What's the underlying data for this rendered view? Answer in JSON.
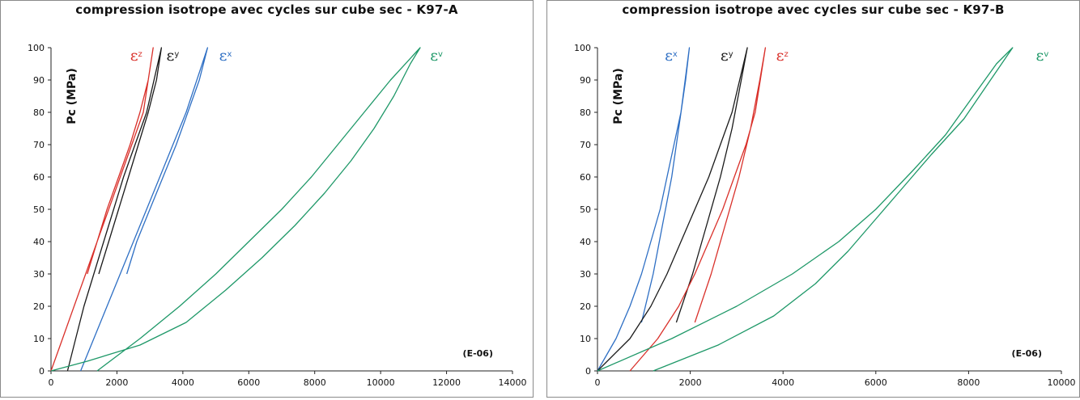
{
  "chart_data": [
    {
      "type": "line",
      "title": "compression isotrope avec cycles sur cube sec - K97-A",
      "ylabel": "Pc (MPa)",
      "x_unit_note": "(E-06)",
      "xlim": [
        0,
        14000
      ],
      "ylim": [
        0,
        100
      ],
      "x_ticks": [
        0,
        2000,
        4000,
        6000,
        8000,
        10000,
        12000,
        14000
      ],
      "y_ticks": [
        0,
        10,
        20,
        30,
        40,
        50,
        60,
        70,
        80,
        90,
        100
      ],
      "grid": false,
      "series": [
        {
          "label_main": "ε",
          "label_sub": "z",
          "color": "#d9302a",
          "x": [
            0,
            350,
            700,
            1050,
            1400,
            1750,
            2100,
            2450,
            2800,
            3100,
            2950,
            2700,
            2400,
            2050,
            1700,
            1400,
            1100
          ],
          "y": [
            0,
            10,
            20,
            30,
            40,
            50,
            60,
            70,
            80,
            100,
            90,
            80,
            70,
            60,
            50,
            40,
            30
          ]
        },
        {
          "label_main": "ε",
          "label_sub": "y",
          "color": "#1a1a1a",
          "x": [
            500,
            750,
            1000,
            1300,
            1600,
            1900,
            2200,
            2550,
            2900,
            3350,
            3200,
            2950,
            2650,
            2350,
            2050,
            1750,
            1450
          ],
          "y": [
            0,
            10,
            20,
            30,
            40,
            50,
            60,
            70,
            80,
            100,
            90,
            80,
            70,
            60,
            50,
            40,
            30
          ]
        },
        {
          "label_main": "ε",
          "label_sub": "x",
          "color": "#2e6fc4",
          "x": [
            900,
            1300,
            1700,
            2100,
            2500,
            2900,
            3300,
            3700,
            4100,
            4750,
            4500,
            4150,
            3800,
            3400,
            3000,
            2600,
            2300
          ],
          "y": [
            0,
            10,
            20,
            30,
            40,
            50,
            60,
            70,
            80,
            100,
            90,
            80,
            70,
            60,
            50,
            40,
            30
          ]
        },
        {
          "label_main": "ε",
          "label_sub": "v",
          "color": "#1e9868",
          "x": [
            1400,
            2700,
            3900,
            5000,
            6000,
            7000,
            7900,
            8700,
            9500,
            10300,
            11200,
            10900,
            10400,
            9800,
            9100,
            8300,
            7400,
            6400,
            5300,
            4100,
            2700,
            1100,
            0
          ],
          "y": [
            0,
            10,
            20,
            30,
            40,
            50,
            60,
            70,
            80,
            90,
            100,
            95,
            85,
            75,
            65,
            55,
            45,
            35,
            25,
            15,
            8,
            3,
            0
          ]
        }
      ],
      "label_positions_x": [
        2400,
        3500,
        5100,
        11500
      ],
      "label_y": 96
    },
    {
      "type": "line",
      "title": "compression isotrope avec cycles sur cube sec - K97-B",
      "ylabel": "Pc (MPa)",
      "x_unit_note": "(E-06)",
      "xlim": [
        0,
        10000
      ],
      "ylim": [
        0,
        100
      ],
      "x_ticks": [
        0,
        2000,
        4000,
        6000,
        8000,
        10000
      ],
      "y_ticks": [
        0,
        10,
        20,
        30,
        40,
        50,
        60,
        70,
        80,
        90,
        100
      ],
      "grid": false,
      "series": [
        {
          "label_main": "ε",
          "label_sub": "x",
          "color": "#2e6fc4",
          "x": [
            0,
            400,
            700,
            950,
            1150,
            1350,
            1500,
            1650,
            1800,
            1980,
            1900,
            1750,
            1600,
            1400,
            1200,
            950
          ],
          "y": [
            0,
            10,
            20,
            30,
            40,
            50,
            60,
            70,
            80,
            100,
            90,
            75,
            60,
            45,
            30,
            15
          ]
        },
        {
          "label_main": "ε",
          "label_sub": "y",
          "color": "#1a1a1a",
          "x": [
            0,
            700,
            1150,
            1500,
            1800,
            2100,
            2400,
            2650,
            2900,
            3230,
            3100,
            2900,
            2650,
            2350,
            2050,
            1700
          ],
          "y": [
            0,
            10,
            20,
            30,
            40,
            50,
            60,
            70,
            80,
            100,
            90,
            75,
            60,
            45,
            30,
            15
          ]
        },
        {
          "label_main": "ε",
          "label_sub": "z",
          "color": "#d9302a",
          "x": [
            700,
            1300,
            1750,
            2100,
            2400,
            2700,
            2950,
            3200,
            3400,
            3620,
            3500,
            3300,
            3050,
            2750,
            2450,
            2100
          ],
          "y": [
            0,
            10,
            20,
            30,
            40,
            50,
            60,
            70,
            80,
            100,
            90,
            75,
            60,
            45,
            30,
            15
          ]
        },
        {
          "label_main": "ε",
          "label_sub": "v",
          "color": "#1e9868",
          "x": [
            1200,
            2600,
            3800,
            4700,
            5400,
            6000,
            6600,
            7200,
            7900,
            8950,
            8600,
            8100,
            7500,
            6800,
            6000,
            5200,
            4200,
            3000,
            1600,
            0
          ],
          "y": [
            0,
            8,
            17,
            27,
            37,
            47,
            57,
            67,
            78,
            100,
            95,
            85,
            73,
            62,
            50,
            40,
            30,
            20,
            10,
            0
          ]
        }
      ],
      "label_positions_x": [
        1450,
        2650,
        3850,
        9450
      ],
      "label_y": 96
    }
  ]
}
